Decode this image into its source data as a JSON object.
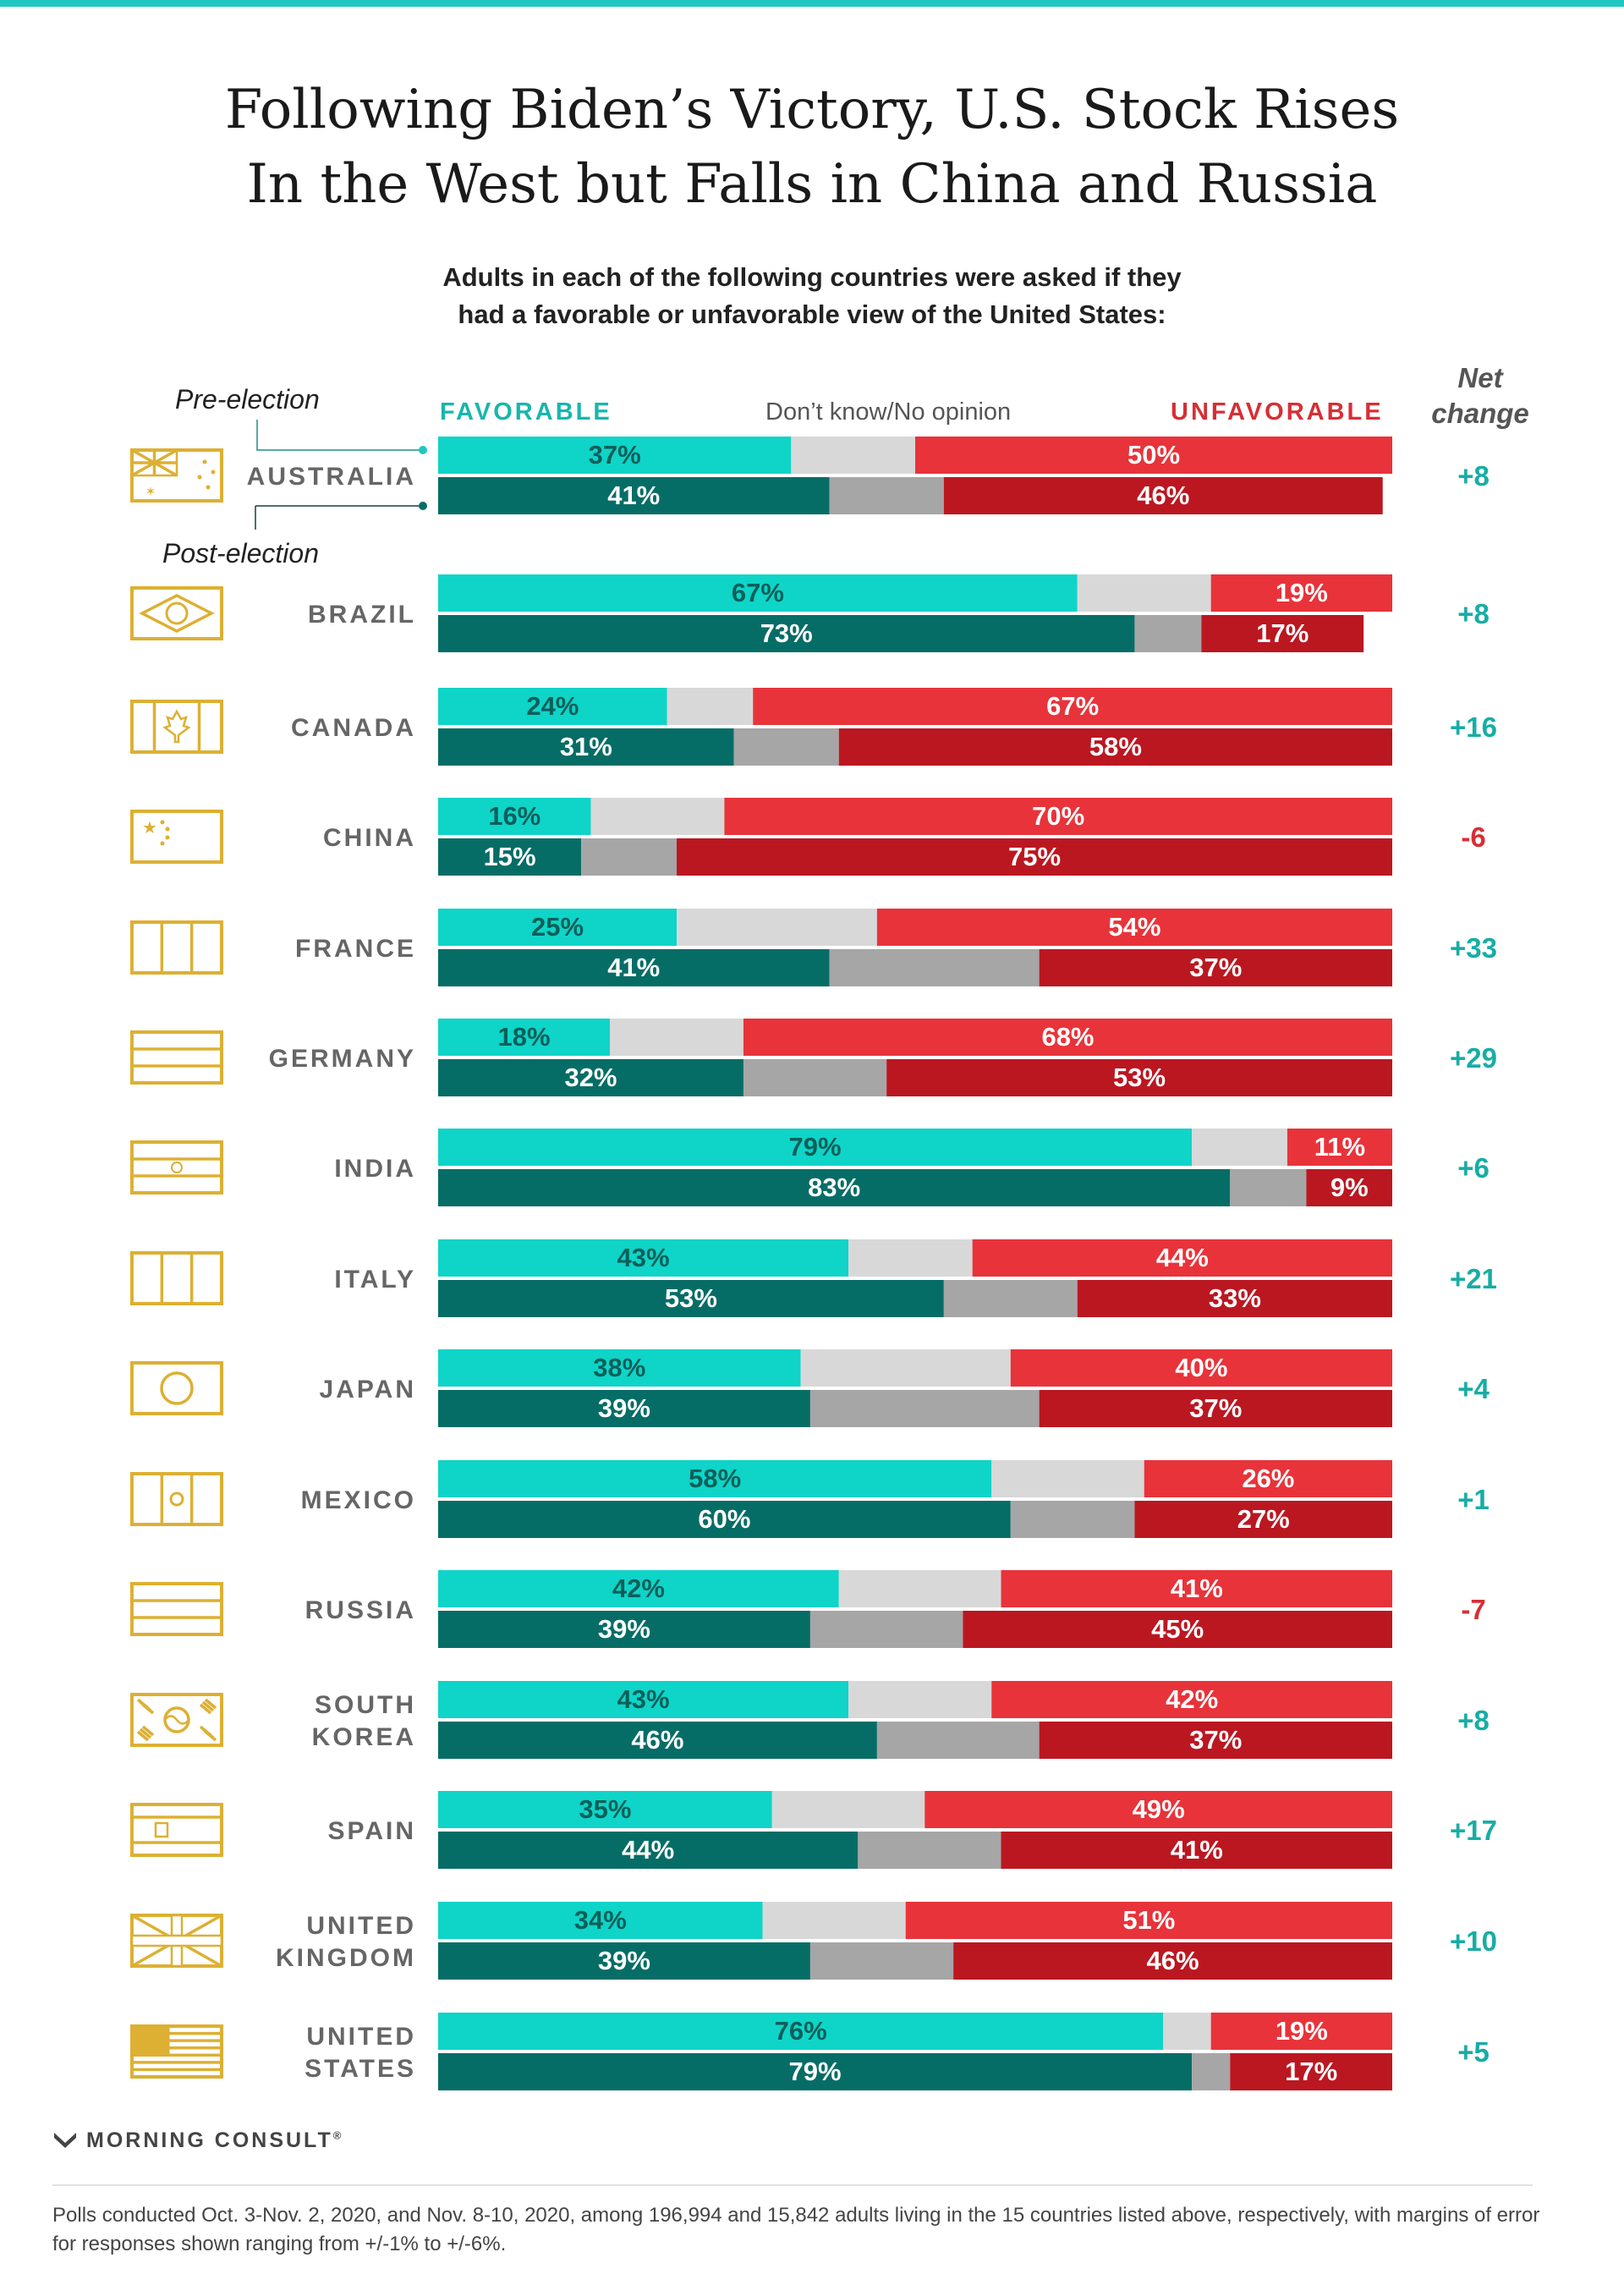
{
  "title_lines": [
    "Following Biden’s Victory, U.S. Stock Rises",
    "In the West but Falls in China and Russia"
  ],
  "subtitle_lines": [
    "Adults in each of the following countries were asked if they",
    "had a favorable or unfavorable view of the United States:"
  ],
  "legend": {
    "favorable": "FAVORABLE",
    "dont_know": "Don’t know/No opinion",
    "unfavorable": "UNFAVORABLE",
    "net_change_lines": [
      "Net",
      "change"
    ]
  },
  "annotations": {
    "pre": "Pre-election",
    "post": "Post-election"
  },
  "colors": {
    "fav_pre": "#0fd4c8",
    "fav_post": "#066d66",
    "dk_pre": "#d8d8d8",
    "dk_post": "#a6a6a6",
    "unf_pre": "#e8333a",
    "unf_post": "#bb1721",
    "positive": "#17ada5",
    "negative": "#d62f35",
    "flag": "#ddb033",
    "country_label": "#666666"
  },
  "chart_data": {
    "type": "bar",
    "orientation": "horizontal-stacked-100",
    "series": [
      {
        "name": "Pre-election",
        "segments": [
          "FAVORABLE",
          "Don’t know/No opinion",
          "UNFAVORABLE"
        ]
      },
      {
        "name": "Post-election",
        "segments": [
          "FAVORABLE",
          "Don’t know/No opinion",
          "UNFAVORABLE"
        ]
      }
    ],
    "rows": [
      {
        "label_lines": [
          "AUSTRALIA"
        ],
        "flag": "australia-flag-icon",
        "pre": {
          "fav": 37,
          "dk": 13,
          "unf": 50
        },
        "post": {
          "fav": 41,
          "dk": 12,
          "unf": 46
        },
        "net": "+8"
      },
      {
        "label_lines": [
          "BRAZIL"
        ],
        "flag": "brazil-flag-icon",
        "pre": {
          "fav": 67,
          "dk": 14,
          "unf": 19
        },
        "post": {
          "fav": 73,
          "dk": 7,
          "unf": 17
        },
        "net": "+8"
      },
      {
        "label_lines": [
          "CANADA"
        ],
        "flag": "canada-flag-icon",
        "pre": {
          "fav": 24,
          "dk": 9,
          "unf": 67
        },
        "post": {
          "fav": 31,
          "dk": 11,
          "unf": 58
        },
        "net": "+16"
      },
      {
        "label_lines": [
          "CHINA"
        ],
        "flag": "china-flag-icon",
        "pre": {
          "fav": 16,
          "dk": 14,
          "unf": 70
        },
        "post": {
          "fav": 15,
          "dk": 10,
          "unf": 75
        },
        "net": "-6"
      },
      {
        "label_lines": [
          "FRANCE"
        ],
        "flag": "france-flag-icon",
        "pre": {
          "fav": 25,
          "dk": 21,
          "unf": 54
        },
        "post": {
          "fav": 41,
          "dk": 22,
          "unf": 37
        },
        "net": "+33"
      },
      {
        "label_lines": [
          "GERMANY"
        ],
        "flag": "germany-flag-icon",
        "pre": {
          "fav": 18,
          "dk": 14,
          "unf": 68
        },
        "post": {
          "fav": 32,
          "dk": 15,
          "unf": 53
        },
        "net": "+29"
      },
      {
        "label_lines": [
          "INDIA"
        ],
        "flag": "india-flag-icon",
        "pre": {
          "fav": 79,
          "dk": 10,
          "unf": 11
        },
        "post": {
          "fav": 83,
          "dk": 8,
          "unf": 9
        },
        "net": "+6"
      },
      {
        "label_lines": [
          "ITALY"
        ],
        "flag": "italy-flag-icon",
        "pre": {
          "fav": 43,
          "dk": 13,
          "unf": 44
        },
        "post": {
          "fav": 53,
          "dk": 14,
          "unf": 33
        },
        "net": "+21"
      },
      {
        "label_lines": [
          "JAPAN"
        ],
        "flag": "japan-flag-icon",
        "pre": {
          "fav": 38,
          "dk": 22,
          "unf": 40
        },
        "post": {
          "fav": 39,
          "dk": 24,
          "unf": 37
        },
        "net": "+4"
      },
      {
        "label_lines": [
          "MEXICO"
        ],
        "flag": "mexico-flag-icon",
        "pre": {
          "fav": 58,
          "dk": 16,
          "unf": 26
        },
        "post": {
          "fav": 60,
          "dk": 13,
          "unf": 27
        },
        "net": "+1"
      },
      {
        "label_lines": [
          "RUSSIA"
        ],
        "flag": "russia-flag-icon",
        "pre": {
          "fav": 42,
          "dk": 17,
          "unf": 41
        },
        "post": {
          "fav": 39,
          "dk": 16,
          "unf": 45
        },
        "net": "-7"
      },
      {
        "label_lines": [
          "SOUTH",
          "KOREA"
        ],
        "flag": "south-korea-flag-icon",
        "pre": {
          "fav": 43,
          "dk": 15,
          "unf": 42
        },
        "post": {
          "fav": 46,
          "dk": 17,
          "unf": 37
        },
        "net": "+8"
      },
      {
        "label_lines": [
          "SPAIN"
        ],
        "flag": "spain-flag-icon",
        "pre": {
          "fav": 35,
          "dk": 16,
          "unf": 49
        },
        "post": {
          "fav": 44,
          "dk": 15,
          "unf": 41
        },
        "net": "+17"
      },
      {
        "label_lines": [
          "UNITED",
          "KINGDOM"
        ],
        "flag": "united-kingdom-flag-icon",
        "pre": {
          "fav": 34,
          "dk": 15,
          "unf": 51
        },
        "post": {
          "fav": 39,
          "dk": 15,
          "unf": 46
        },
        "net": "+10"
      },
      {
        "label_lines": [
          "UNITED",
          "STATES"
        ],
        "flag": "united-states-flag-icon",
        "pre": {
          "fav": 76,
          "dk": 5,
          "unf": 19
        },
        "post": {
          "fav": 79,
          "dk": 4,
          "unf": 17
        },
        "net": "+5"
      }
    ]
  },
  "brand": "MORNING CONSULT",
  "brand_mark": "®",
  "footnote": "Polls conducted Oct. 3-Nov. 2, 2020, and Nov. 8-10, 2020, among 196,994 and 15,842 adults living in the 15 countries listed above, respectively, with margins of error for responses shown ranging from +/-1% to +/-6%."
}
